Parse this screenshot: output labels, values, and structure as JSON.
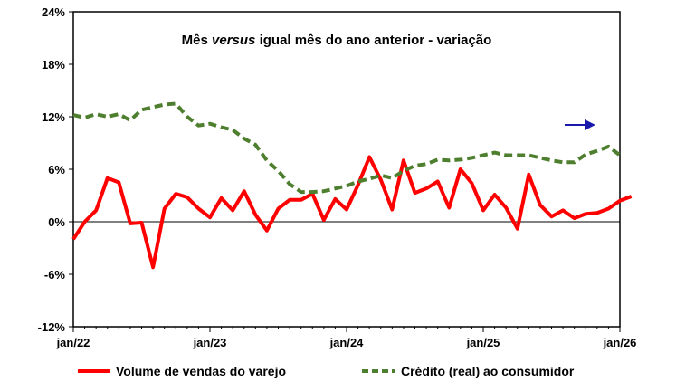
{
  "chart_data": {
    "type": "line",
    "title_parts": [
      "Mês ",
      "versus",
      " igual mês do ano anterior - variação"
    ],
    "xlabel": "",
    "ylabel": "",
    "ylim": [
      -12,
      24
    ],
    "yticks": [
      -12,
      -6,
      0,
      6,
      12,
      18,
      24
    ],
    "ytick_labels": [
      "-12%",
      "-6%",
      "0%",
      "6%",
      "12%",
      "18%",
      "24%"
    ],
    "x_range": [
      0,
      48
    ],
    "xticks": [
      0,
      12,
      24,
      36,
      48
    ],
    "xtick_labels": [
      "jan/22",
      "jan/23",
      "jan/24",
      "jan/25",
      "jan/26"
    ],
    "grid": false,
    "legend_position": "bottom",
    "series": [
      {
        "name": "Volume de vendas do varejo",
        "color": "#ff0000",
        "style": "solid",
        "values": [
          -2.0,
          0.0,
          1.3,
          5.0,
          4.5,
          -0.2,
          -0.1,
          -5.2,
          1.5,
          3.2,
          2.8,
          1.5,
          0.5,
          2.7,
          1.3,
          3.5,
          0.8,
          -1.0,
          1.5,
          2.5,
          2.5,
          3.2,
          0.2,
          2.6,
          1.4,
          4.2,
          7.4,
          4.8,
          1.4,
          7.0,
          3.3,
          3.8,
          4.6,
          1.6,
          6.0,
          4.4,
          1.3,
          3.1,
          1.6,
          -0.8,
          5.4,
          1.9,
          0.6,
          1.3,
          0.4,
          0.9,
          1.0,
          1.5,
          2.4,
          2.9
        ]
      },
      {
        "name": "Crédito (real) ao consumidor",
        "color": "#4e7f2e",
        "style": "dashed",
        "values": [
          12.2,
          11.9,
          12.3,
          12.0,
          12.3,
          11.6,
          12.8,
          13.1,
          13.4,
          13.5,
          12.0,
          11.0,
          11.2,
          10.8,
          10.5,
          9.5,
          8.8,
          7.0,
          5.8,
          4.3,
          3.4,
          3.4,
          3.5,
          3.8,
          4.1,
          4.6,
          4.9,
          5.3,
          5.0,
          5.8,
          6.4,
          6.6,
          7.1,
          7.0,
          7.1,
          7.3,
          7.6,
          7.9,
          7.6,
          7.6,
          7.6,
          7.3,
          7.0,
          6.8,
          6.8,
          7.7,
          8.1,
          8.6,
          7.6
        ]
      }
    ],
    "annotation": {
      "icon": "arrow-right",
      "color": "#1a1aaa"
    }
  }
}
